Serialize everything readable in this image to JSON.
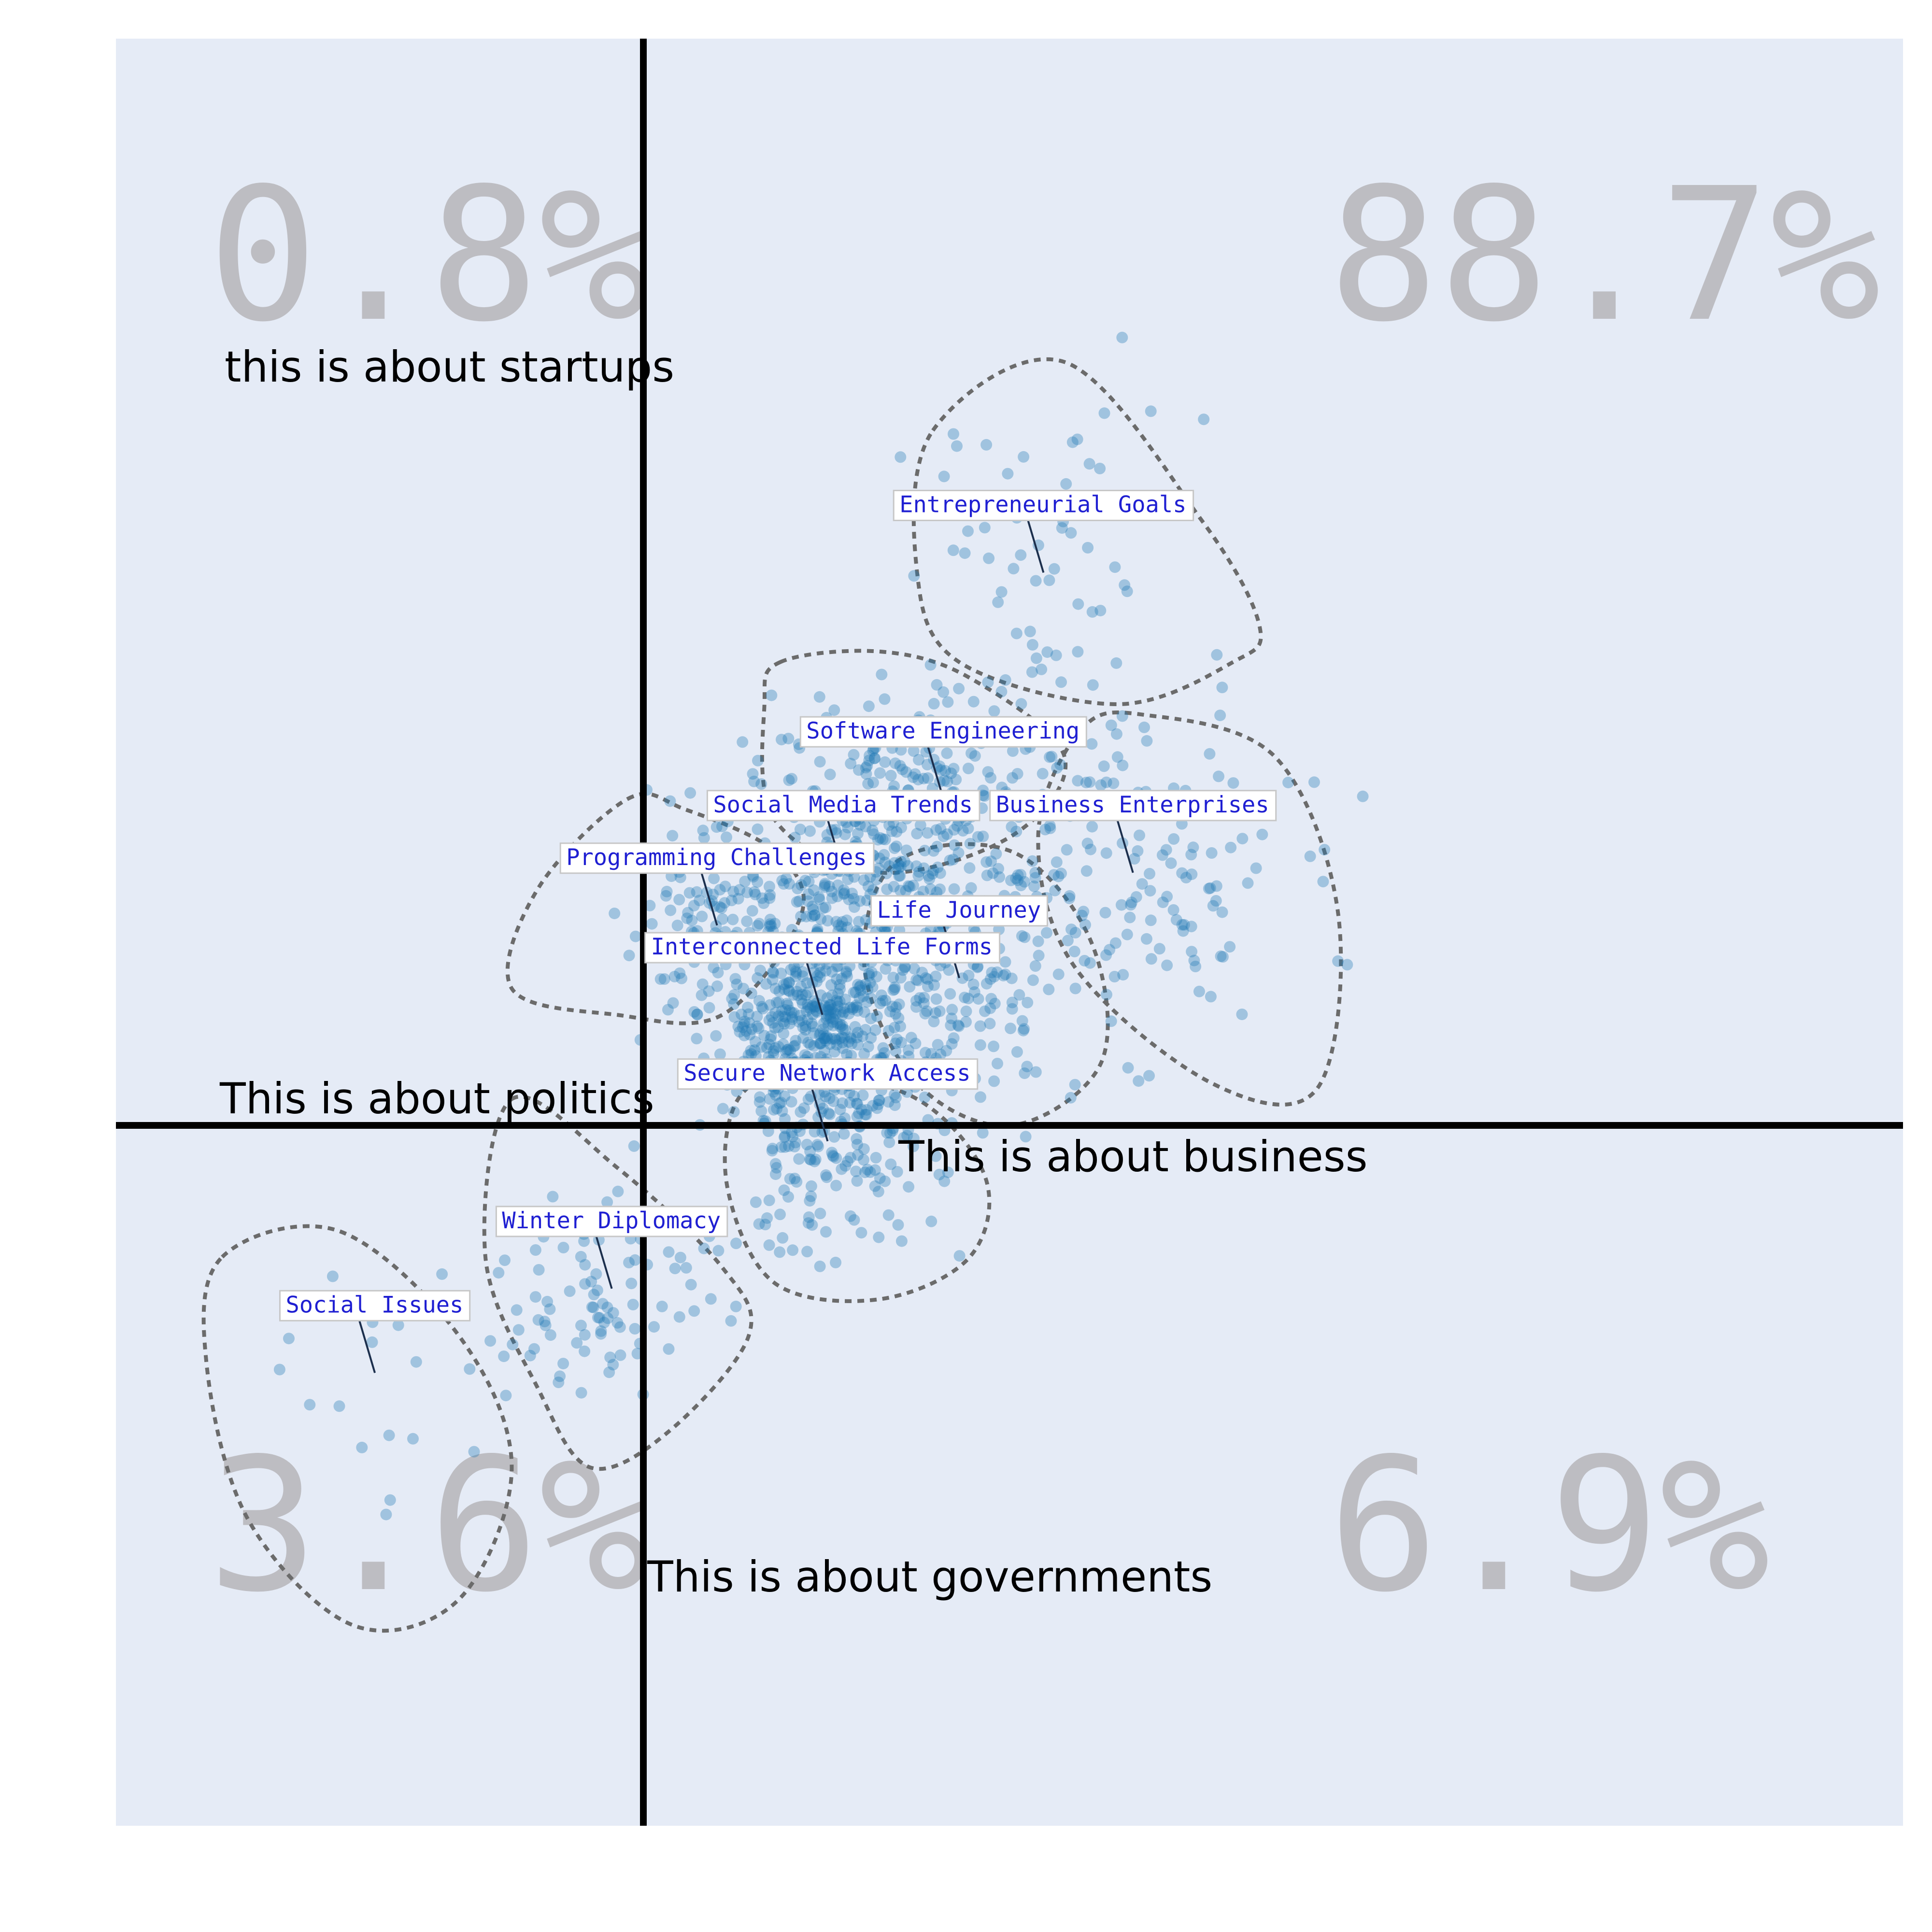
{
  "chart_data": {
    "type": "scatter",
    "x_range": [
      -1.0,
      2.4
    ],
    "y_range": [
      -1.3,
      2.0
    ],
    "grid": false,
    "quadrant_percentages": {
      "top_left": "0.8%",
      "top_right": "88.7%",
      "bottom_left": "3.6%",
      "bottom_right": "6.9%"
    },
    "axis_labels": {
      "top": "this is about startups",
      "left": "This is about politics",
      "right": "This is about business",
      "bottom": "This is about governments"
    },
    "topics": [
      {
        "label": "Entrepreneurial Goals",
        "x": 0.76,
        "y": 1.05,
        "spread": 0.2,
        "n": 60,
        "cluster": [
          [
            0.55,
            1.32
          ],
          [
            0.8,
            1.45
          ],
          [
            1.06,
            1.15
          ],
          [
            1.17,
            0.95
          ],
          [
            1.12,
            0.88
          ],
          [
            0.9,
            0.8
          ],
          [
            0.6,
            0.88
          ],
          [
            0.52,
            1.05
          ]
        ]
      },
      {
        "label": "Software Engineering",
        "x": 0.57,
        "y": 0.62,
        "spread": 0.16,
        "n": 220,
        "cluster": [
          [
            0.26,
            0.88
          ],
          [
            0.45,
            0.9
          ],
          [
            0.62,
            0.85
          ],
          [
            0.8,
            0.7
          ],
          [
            0.7,
            0.55
          ],
          [
            0.45,
            0.48
          ],
          [
            0.25,
            0.58
          ],
          [
            0.23,
            0.8
          ]
        ]
      },
      {
        "label": "Business Enterprises",
        "x": 0.93,
        "y": 0.48,
        "spread": 0.2,
        "n": 140,
        "cluster": [
          [
            0.83,
            0.75
          ],
          [
            0.95,
            0.78
          ],
          [
            1.2,
            0.7
          ],
          [
            1.32,
            0.4
          ],
          [
            1.28,
            0.07
          ],
          [
            1.08,
            0.08
          ],
          [
            0.82,
            0.3
          ],
          [
            0.75,
            0.55
          ]
        ]
      },
      {
        "label": "Social Media Trends",
        "x": 0.38,
        "y": 0.48,
        "spread": 0.15,
        "n": 200
      },
      {
        "label": "Programming Challenges",
        "x": 0.14,
        "y": 0.38,
        "spread": 0.12,
        "n": 120,
        "cluster": [
          [
            -0.03,
            0.62
          ],
          [
            0.08,
            0.6
          ],
          [
            0.25,
            0.52
          ],
          [
            0.3,
            0.4
          ],
          [
            0.15,
            0.21
          ],
          [
            -0.05,
            0.21
          ],
          [
            -0.25,
            0.26
          ],
          [
            -0.2,
            0.45
          ]
        ]
      },
      {
        "label": "Life Journey",
        "x": 0.6,
        "y": 0.28,
        "spread": 0.15,
        "n": 170,
        "cluster": [
          [
            0.48,
            0.5
          ],
          [
            0.7,
            0.52
          ],
          [
            0.85,
            0.35
          ],
          [
            0.87,
            0.12
          ],
          [
            0.7,
            0.0
          ],
          [
            0.52,
            0.08
          ],
          [
            0.42,
            0.3
          ]
        ]
      },
      {
        "label": "Interconnected Life Forms",
        "x": 0.34,
        "y": 0.21,
        "spread": 0.12,
        "n": 420
      },
      {
        "label": "Secure Network Access",
        "x": 0.35,
        "y": -0.03,
        "spread": 0.14,
        "n": 200,
        "cluster": [
          [
            0.3,
            0.1
          ],
          [
            0.52,
            0.05
          ],
          [
            0.65,
            -0.1
          ],
          [
            0.62,
            -0.25
          ],
          [
            0.45,
            -0.33
          ],
          [
            0.25,
            -0.3
          ],
          [
            0.16,
            -0.12
          ],
          [
            0.18,
            0.05
          ]
        ]
      },
      {
        "label": "Winter Diplomacy",
        "x": -0.06,
        "y": -0.31,
        "spread": 0.14,
        "n": 90,
        "cluster": [
          [
            -0.25,
            0.05
          ],
          [
            -0.05,
            -0.08
          ],
          [
            0.15,
            -0.27
          ],
          [
            0.2,
            -0.4
          ],
          [
            0.05,
            -0.58
          ],
          [
            -0.1,
            -0.65
          ],
          [
            -0.2,
            -0.5
          ],
          [
            -0.3,
            -0.25
          ]
        ]
      },
      {
        "label": "Social Issues",
        "x": -0.51,
        "y": -0.47,
        "spread": 0.18,
        "n": 20,
        "cluster": [
          [
            -0.8,
            -0.25
          ],
          [
            -0.58,
            -0.2
          ],
          [
            -0.35,
            -0.4
          ],
          [
            -0.25,
            -0.65
          ],
          [
            -0.35,
            -0.9
          ],
          [
            -0.55,
            -0.95
          ],
          [
            -0.75,
            -0.75
          ],
          [
            -0.83,
            -0.45
          ]
        ]
      }
    ]
  }
}
